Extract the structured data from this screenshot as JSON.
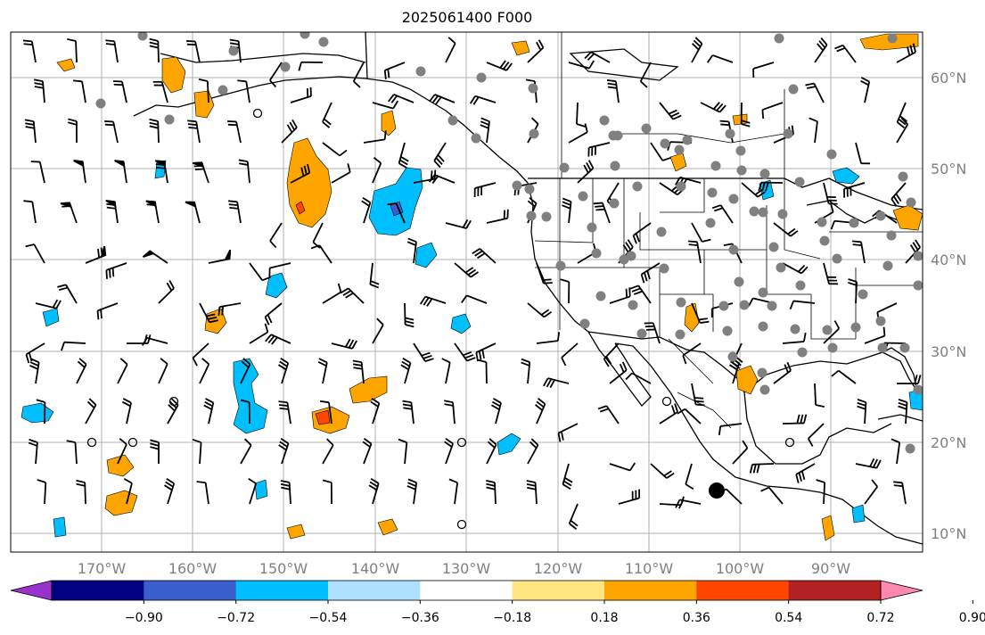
{
  "title": "2025061400 F000",
  "map": {
    "longitude_labels": [
      "170°W",
      "160°W",
      "150°W",
      "140°W",
      "130°W",
      "120°W",
      "110°W",
      "100°W",
      "90°W"
    ],
    "latitude_labels": [
      "60°N",
      "50°N",
      "40°N",
      "30°N",
      "20°N",
      "10°N"
    ],
    "gridlines": true
  },
  "colorbar": {
    "tick_labels": [
      "−0.90",
      "−0.72",
      "−0.54",
      "−0.36",
      "−0.18",
      "0.18",
      "0.36",
      "0.54",
      "0.72",
      "0.90"
    ],
    "colors": [
      "#9932cc",
      "#000080",
      "#3a5fcd",
      "#00bfff",
      "#aee1ff",
      "#ffffff",
      "#ffe680",
      "#ffa500",
      "#ff4500",
      "#b22222",
      "#ff88b0"
    ],
    "extend": "both"
  },
  "colors": {
    "land_border": "#000000",
    "grid": "#b0b0b0",
    "station_marker": "#808080",
    "label": "#808080"
  }
}
